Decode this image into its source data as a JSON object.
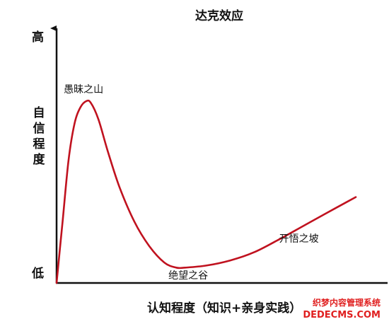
{
  "chart_data": {
    "type": "line",
    "title": "达克效应",
    "xlabel": "认知程度（知识+亲身实践）",
    "ylabel": "自信程度",
    "y_high_label": "高",
    "y_low_label": "低",
    "grid": false,
    "xlim": [
      0,
      100
    ],
    "ylim": [
      0,
      100
    ],
    "series": [
      {
        "color": "#c0121f",
        "points": [
          [
            0,
            0
          ],
          [
            2,
            30
          ],
          [
            4,
            60
          ],
          [
            6,
            78
          ],
          [
            8,
            86
          ],
          [
            10,
            89
          ],
          [
            11.5,
            88
          ],
          [
            14,
            80
          ],
          [
            17,
            65
          ],
          [
            21,
            47
          ],
          [
            26,
            30
          ],
          [
            31,
            18
          ],
          [
            36,
            10
          ],
          [
            40,
            7.5
          ],
          [
            43,
            7.5
          ],
          [
            50,
            8.5
          ],
          [
            58,
            11
          ],
          [
            66,
            15
          ],
          [
            74,
            21
          ],
          [
            82,
            27.5
          ],
          [
            90,
            34
          ],
          [
            95,
            38
          ],
          [
            100,
            42
          ]
        ]
      }
    ],
    "annotations": [
      {
        "text": "愚昧之山",
        "x": 9,
        "y": 93
      },
      {
        "text": "绝望之谷",
        "x": 44,
        "y": 2
      },
      {
        "text": "开悟之坡",
        "x": 81,
        "y": 20
      }
    ]
  },
  "colors": {
    "curve": "#c0121f",
    "axis": "#111111",
    "watermark": "#e02020"
  },
  "watermark": {
    "line1": "织梦内容管理系统",
    "line2": "DEDECMS.COM"
  }
}
